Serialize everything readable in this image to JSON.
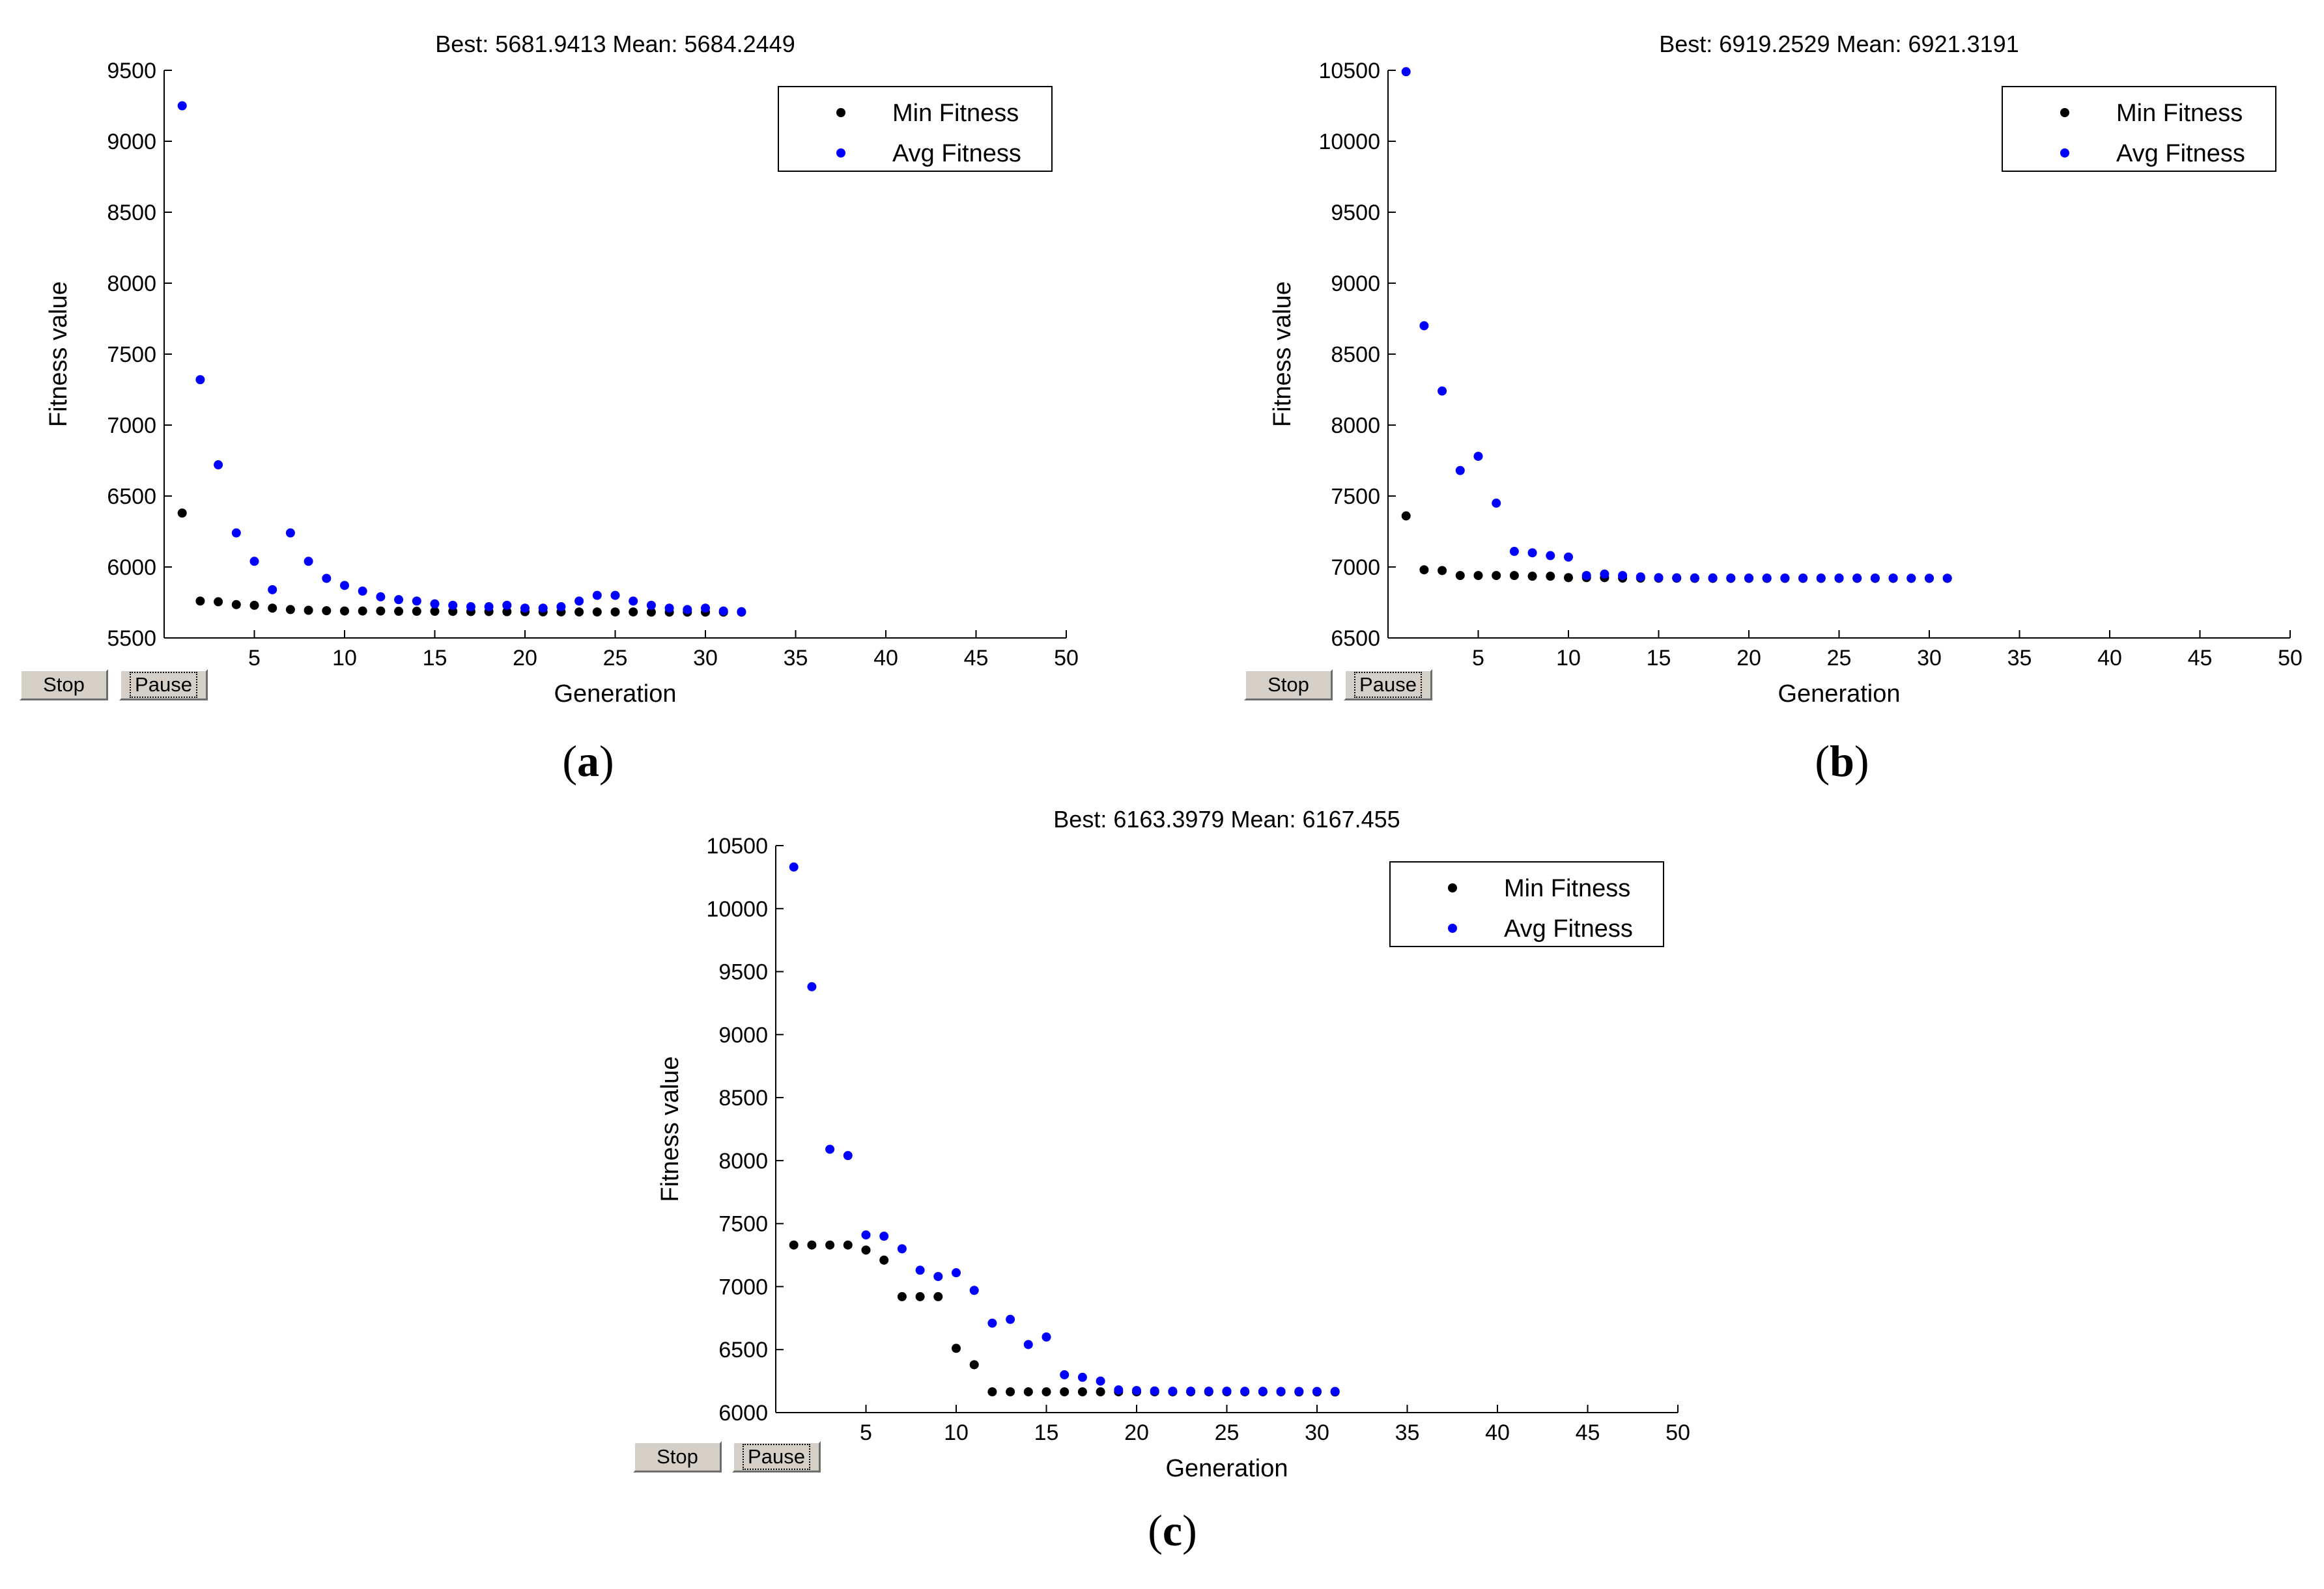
{
  "controls": {
    "stop_label": "Stop",
    "pause_label": "Pause"
  },
  "colors": {
    "min": "#000000",
    "avg": "#0000ff"
  },
  "chart_data": [
    {
      "id": "a",
      "type": "scatter",
      "panel_label": "a",
      "title": "Best: 5681.9413 Mean: 5684.2449",
      "xlabel": "Generation",
      "ylabel": "Fitness value",
      "xlim": [
        0,
        50
      ],
      "ylim": [
        5500,
        9500
      ],
      "xticks": [
        5,
        10,
        15,
        20,
        25,
        30,
        35,
        40,
        45,
        50
      ],
      "yticks": [
        5500,
        6000,
        6500,
        7000,
        7500,
        8000,
        8500,
        9000,
        9500
      ],
      "legend_position": "top-right",
      "series": [
        {
          "name": "Min Fitness",
          "color": "#000000",
          "x": [
            1,
            2,
            3,
            4,
            5,
            6,
            7,
            8,
            9,
            10,
            11,
            12,
            13,
            14,
            15,
            16,
            17,
            18,
            19,
            20,
            21,
            22,
            23,
            24,
            25,
            26,
            27,
            28,
            29,
            30,
            31,
            32
          ],
          "y": [
            6380,
            5760,
            5755,
            5735,
            5730,
            5710,
            5700,
            5695,
            5692,
            5690,
            5690,
            5690,
            5688,
            5688,
            5688,
            5687,
            5686,
            5686,
            5685,
            5685,
            5684,
            5684,
            5683,
            5683,
            5683,
            5683,
            5682,
            5682,
            5682,
            5682,
            5682,
            5682
          ]
        },
        {
          "name": "Avg Fitness",
          "color": "#0000ff",
          "x": [
            1,
            2,
            3,
            4,
            5,
            6,
            7,
            8,
            9,
            10,
            11,
            12,
            13,
            14,
            15,
            16,
            17,
            18,
            19,
            20,
            21,
            22,
            23,
            24,
            25,
            26,
            27,
            28,
            29,
            30,
            31,
            32
          ],
          "y": [
            9250,
            7320,
            6720,
            6240,
            6040,
            5840,
            6240,
            6040,
            5920,
            5870,
            5830,
            5790,
            5770,
            5760,
            5740,
            5730,
            5720,
            5720,
            5730,
            5710,
            5710,
            5720,
            5760,
            5800,
            5800,
            5760,
            5730,
            5710,
            5700,
            5710,
            5690,
            5685
          ]
        }
      ]
    },
    {
      "id": "b",
      "type": "scatter",
      "panel_label": "b",
      "title": "Best: 6919.2529 Mean: 6921.3191",
      "xlabel": "Generation",
      "ylabel": "Fitness value",
      "xlim": [
        0,
        50
      ],
      "ylim": [
        6500,
        10500
      ],
      "xticks": [
        5,
        10,
        15,
        20,
        25,
        30,
        35,
        40,
        45,
        50
      ],
      "yticks": [
        6500,
        7000,
        7500,
        8000,
        8500,
        9000,
        9500,
        10000,
        10500
      ],
      "legend_position": "top-right",
      "series": [
        {
          "name": "Min Fitness",
          "color": "#000000",
          "x": [
            1,
            2,
            3,
            4,
            5,
            6,
            7,
            8,
            9,
            10,
            11,
            12,
            13,
            14,
            15,
            16,
            17,
            18,
            19,
            20,
            21,
            22,
            23,
            24,
            25,
            26,
            27,
            28,
            29,
            30,
            31
          ],
          "y": [
            7360,
            6980,
            6975,
            6940,
            6940,
            6940,
            6940,
            6935,
            6935,
            6925,
            6925,
            6925,
            6922,
            6922,
            6921,
            6921,
            6920,
            6920,
            6920,
            6920,
            6920,
            6920,
            6920,
            6920,
            6920,
            6920,
            6920,
            6920,
            6920,
            6920,
            6920
          ]
        },
        {
          "name": "Avg Fitness",
          "color": "#0000ff",
          "x": [
            1,
            2,
            3,
            4,
            5,
            6,
            7,
            8,
            9,
            10,
            11,
            12,
            13,
            14,
            15,
            16,
            17,
            18,
            19,
            20,
            21,
            22,
            23,
            24,
            25,
            26,
            27,
            28,
            29,
            30,
            31
          ],
          "y": [
            10490,
            8700,
            8240,
            7680,
            7780,
            7450,
            7110,
            7100,
            7080,
            7070,
            6940,
            6950,
            6940,
            6930,
            6925,
            6924,
            6923,
            6923,
            6922,
            6922,
            6922,
            6922,
            6922,
            6922,
            6922,
            6922,
            6922,
            6922,
            6921,
            6921,
            6921
          ]
        }
      ]
    },
    {
      "id": "c",
      "type": "scatter",
      "panel_label": "c",
      "title": "Best: 6163.3979 Mean: 6167.455",
      "xlabel": "Generation",
      "ylabel": "Fitness value",
      "xlim": [
        0,
        50
      ],
      "ylim": [
        6000,
        10500
      ],
      "xticks": [
        5,
        10,
        15,
        20,
        25,
        30,
        35,
        40,
        45,
        50
      ],
      "yticks": [
        6000,
        6500,
        7000,
        7500,
        8000,
        8500,
        9000,
        9500,
        10000,
        10500
      ],
      "legend_position": "top-right",
      "series": [
        {
          "name": "Min Fitness",
          "color": "#000000",
          "x": [
            1,
            2,
            3,
            4,
            5,
            6,
            7,
            8,
            9,
            10,
            11,
            12,
            13,
            14,
            15,
            16,
            17,
            18,
            19,
            20,
            21,
            22,
            23,
            24,
            25,
            26,
            27,
            28,
            29,
            30,
            31
          ],
          "y": [
            7330,
            7330,
            7330,
            7330,
            7290,
            7210,
            6920,
            6920,
            6920,
            6510,
            6380,
            6165,
            6165,
            6165,
            6165,
            6165,
            6165,
            6165,
            6165,
            6165,
            6165,
            6165,
            6165,
            6165,
            6165,
            6165,
            6165,
            6165,
            6164,
            6164,
            6164
          ]
        },
        {
          "name": "Avg Fitness",
          "color": "#0000ff",
          "x": [
            1,
            2,
            3,
            4,
            5,
            6,
            7,
            8,
            9,
            10,
            11,
            12,
            13,
            14,
            15,
            16,
            17,
            18,
            19,
            20,
            21,
            22,
            23,
            24,
            25,
            26,
            27,
            28,
            29,
            30,
            31
          ],
          "y": [
            10330,
            9380,
            8090,
            8040,
            7410,
            7400,
            7300,
            7130,
            7080,
            7110,
            6970,
            6710,
            6740,
            6540,
            6600,
            6300,
            6280,
            6250,
            6180,
            6175,
            6172,
            6170,
            6170,
            6170,
            6170,
            6169,
            6169,
            6168,
            6168,
            6168,
            6168
          ]
        }
      ]
    }
  ]
}
